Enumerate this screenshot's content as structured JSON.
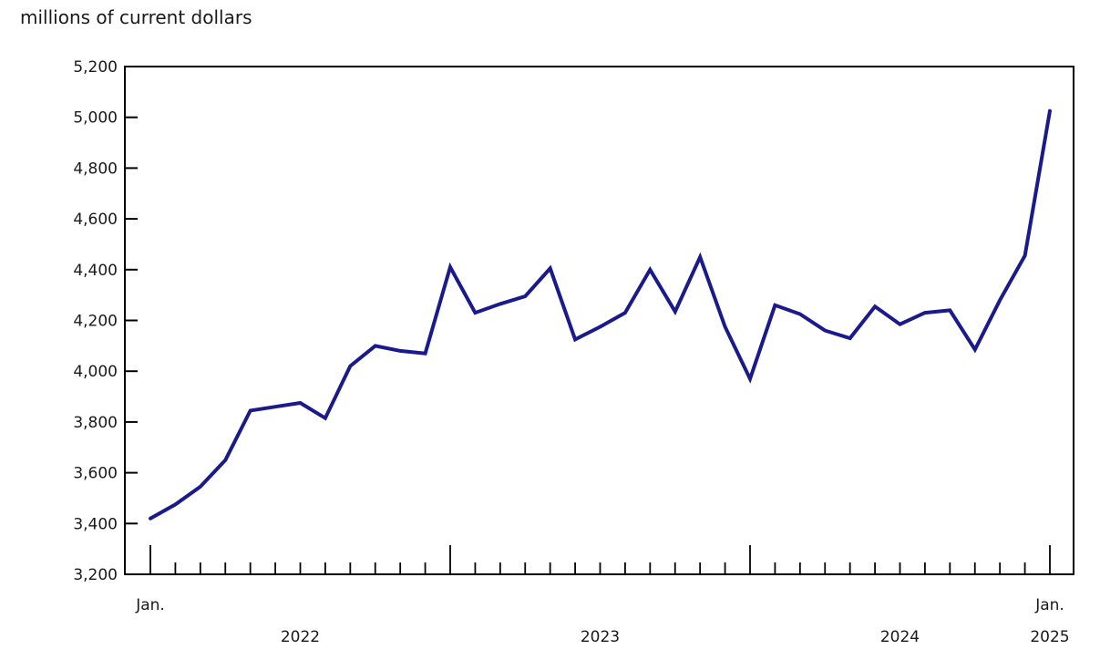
{
  "title": "millions of current dollars",
  "colors": {
    "line": "#1a1a8c",
    "axis": "#000000",
    "text": "#1a1a1a",
    "background": "#ffffff"
  },
  "chart_data": {
    "type": "line",
    "title": "millions of current dollars",
    "xlabel": "",
    "ylabel": "millions of current dollars",
    "grid": false,
    "legend": false,
    "ylim": [
      3200,
      5200
    ],
    "y_tick_step": 200,
    "y_tick_labels": [
      "5,200",
      "5,000",
      "4,800",
      "4,600",
      "4,400",
      "4,200",
      "4,000",
      "3,800",
      "3,600",
      "3,400",
      "3,200"
    ],
    "x": [
      "2022-01",
      "2022-02",
      "2022-03",
      "2022-04",
      "2022-05",
      "2022-06",
      "2022-07",
      "2022-08",
      "2022-09",
      "2022-10",
      "2022-11",
      "2022-12",
      "2023-01",
      "2023-02",
      "2023-03",
      "2023-04",
      "2023-05",
      "2023-06",
      "2023-07",
      "2023-08",
      "2023-09",
      "2023-10",
      "2023-11",
      "2023-12",
      "2024-01",
      "2024-02",
      "2024-03",
      "2024-04",
      "2024-05",
      "2024-06",
      "2024-07",
      "2024-08",
      "2024-09",
      "2024-10",
      "2024-11",
      "2024-12",
      "2025-01"
    ],
    "values": [
      3420,
      3475,
      3545,
      3650,
      3845,
      3860,
      3875,
      3815,
      4020,
      4100,
      4080,
      4070,
      4410,
      4230,
      4265,
      4295,
      4405,
      4125,
      4175,
      4230,
      4400,
      4235,
      4450,
      4175,
      3970,
      4260,
      4225,
      4160,
      4130,
      4255,
      4185,
      4230,
      4240,
      4085,
      4280,
      4455,
      5025
    ],
    "x_axis": {
      "start_month_label": "Jan.",
      "end_month_label": "Jan.",
      "end_year_label": "2025",
      "year_labels": [
        {
          "text": "2022",
          "month_index": 6
        },
        {
          "text": "2023",
          "month_index": 18
        },
        {
          "text": "2024",
          "month_index": 30
        }
      ],
      "major_tick_every": 12
    }
  }
}
